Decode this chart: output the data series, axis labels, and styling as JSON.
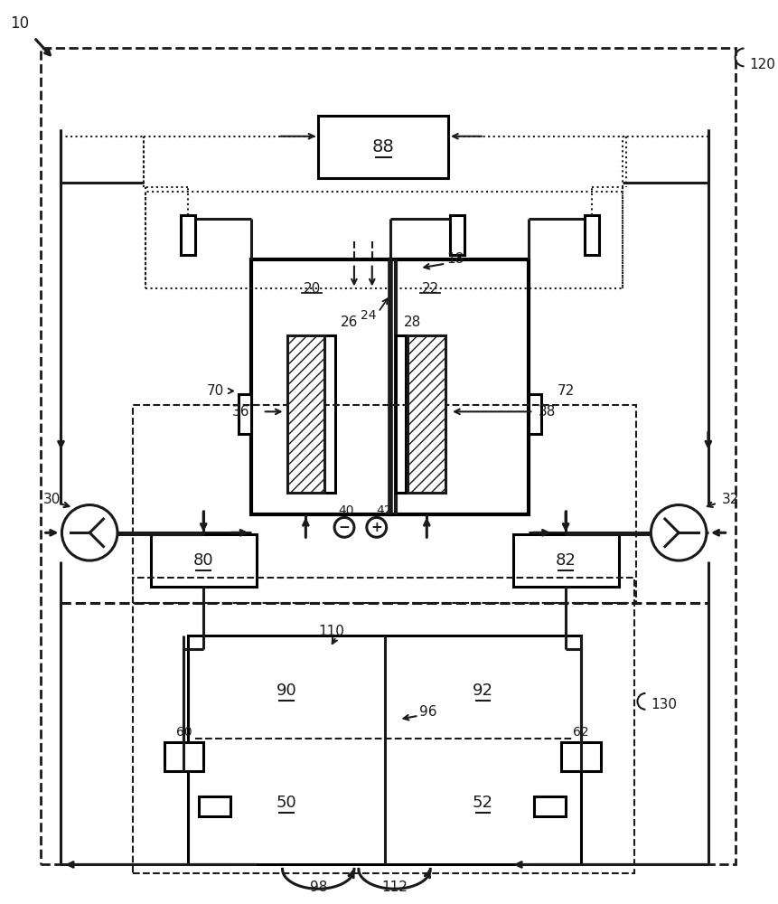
{
  "bg_color": "#ffffff",
  "line_color": "#1a1a1a",
  "fig_width": 8.62,
  "fig_height": 10.0,
  "dpi": 100
}
